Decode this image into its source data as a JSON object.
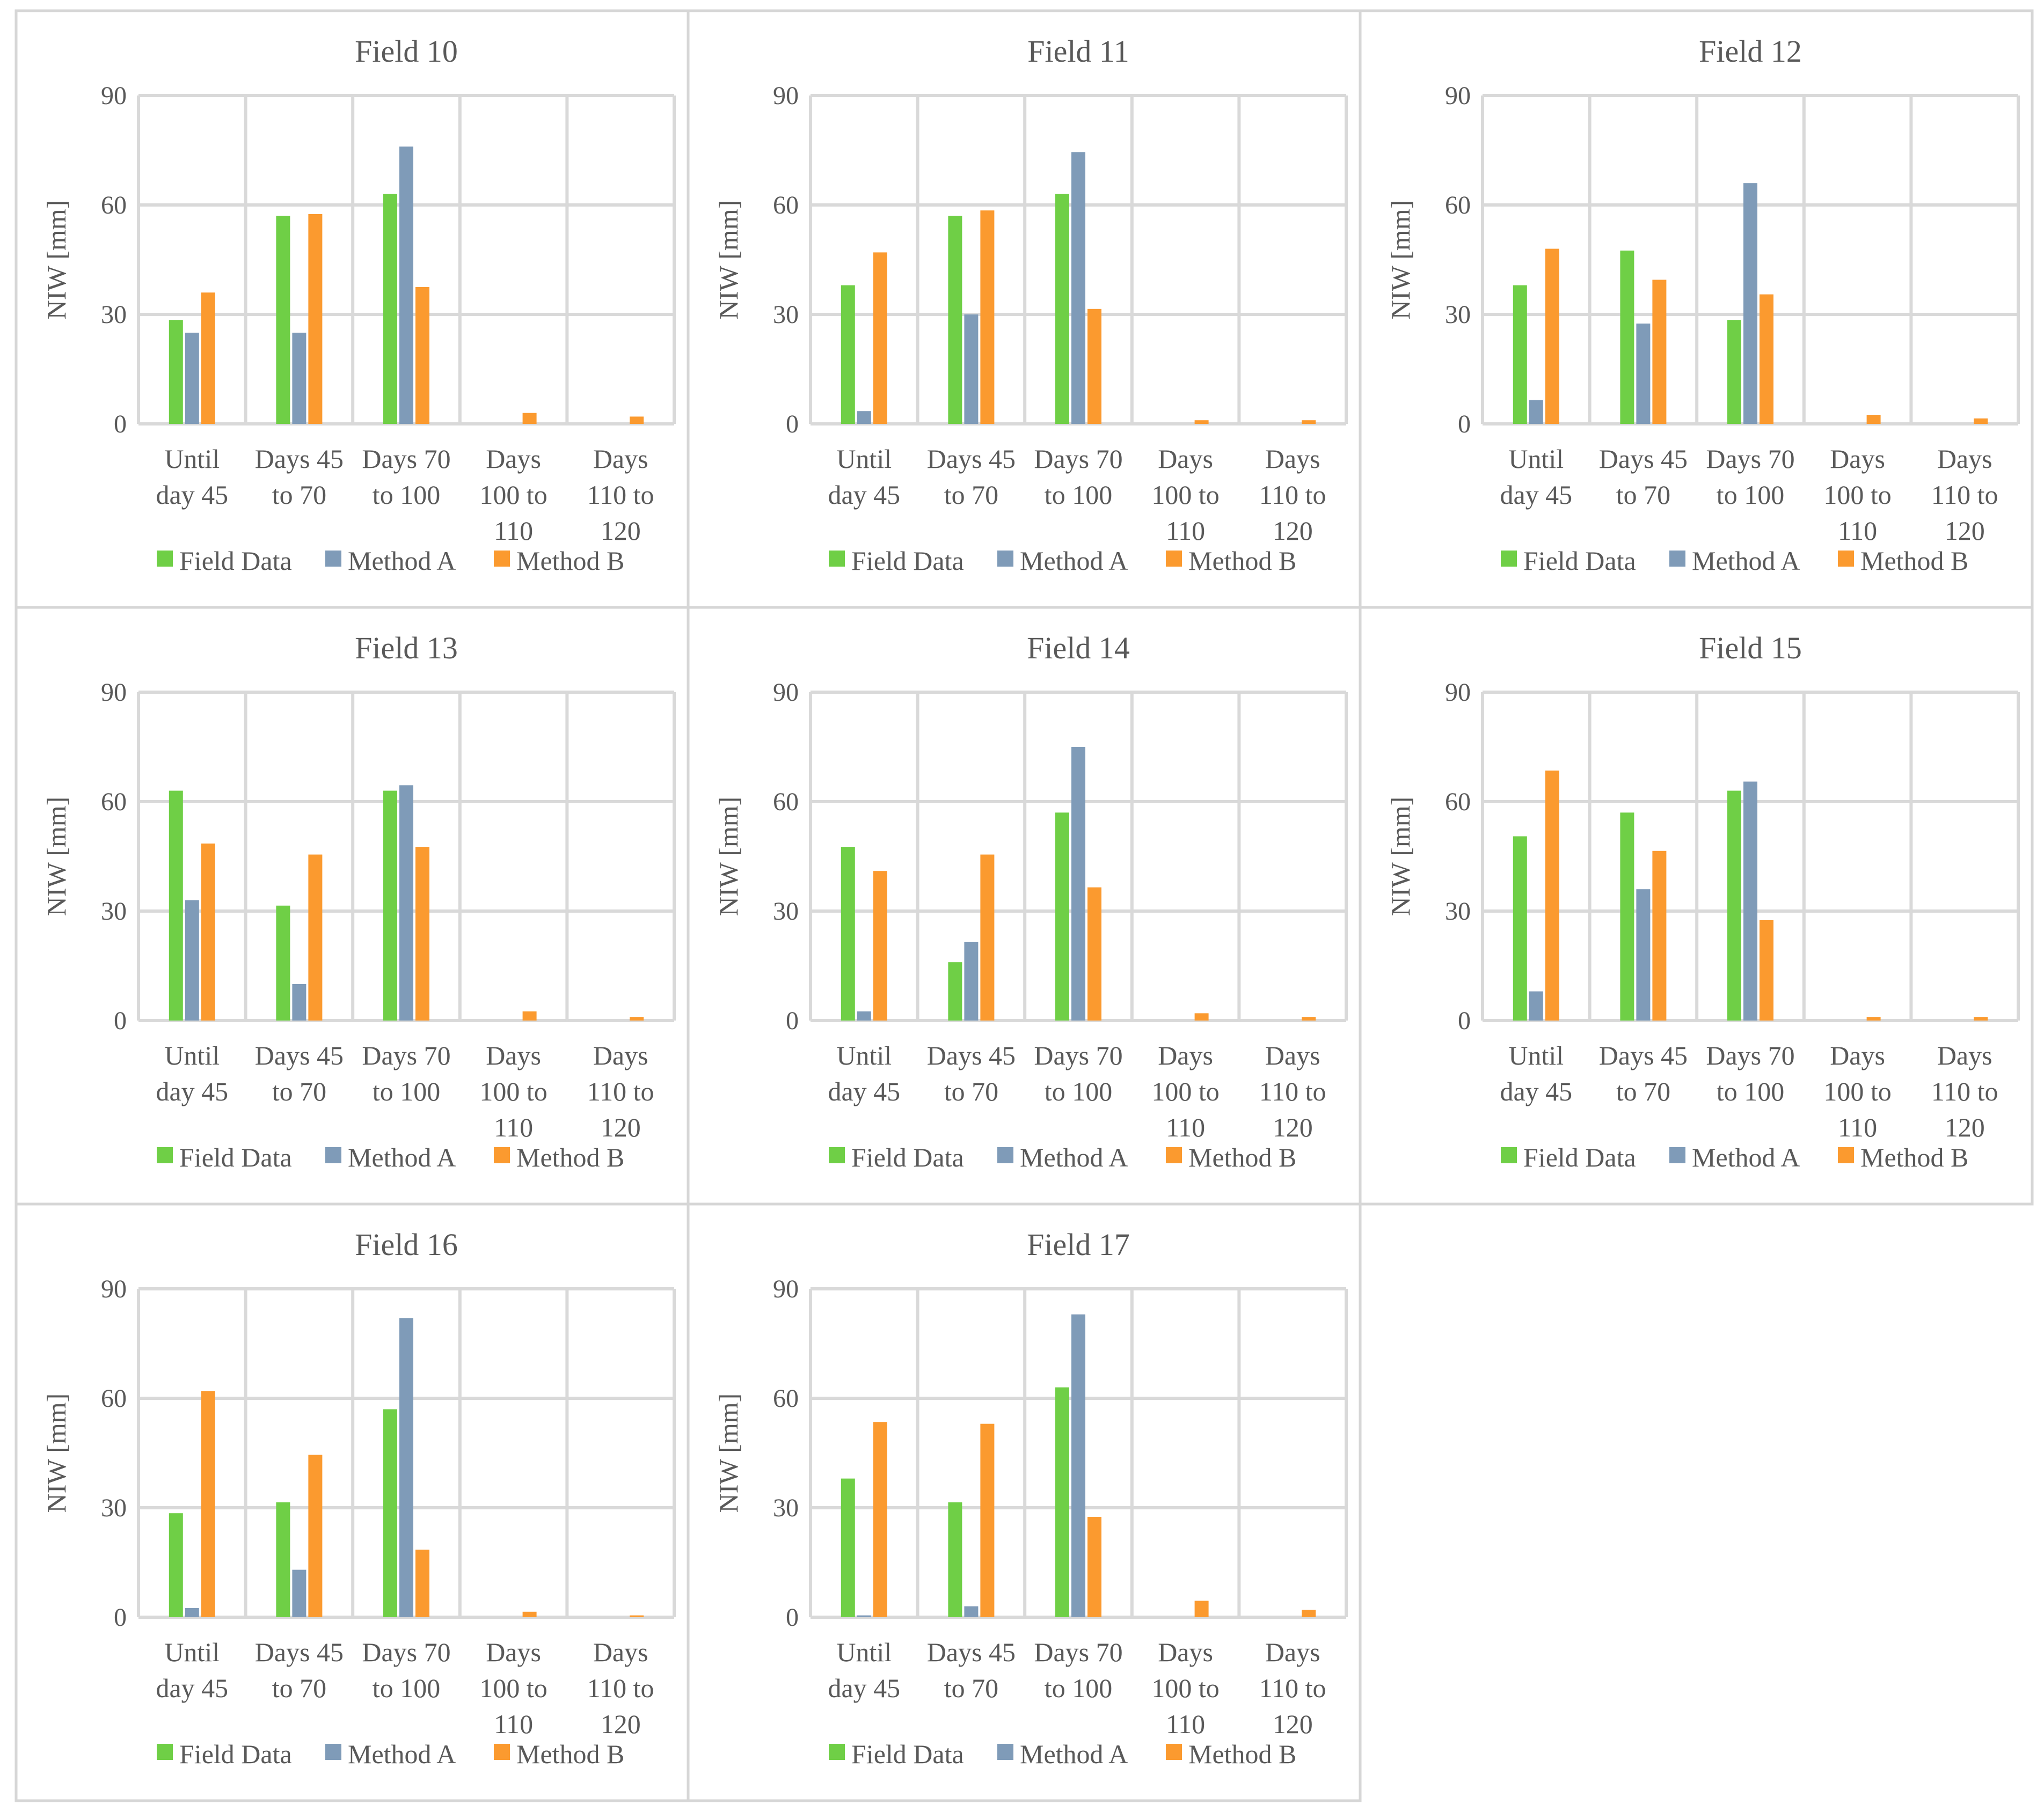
{
  "colors": {
    "field_data": "#6fcf46",
    "method_a": "#7f9bb8",
    "method_b": "#fb9a2f"
  },
  "chart_data": [
    {
      "type": "bar",
      "title": "Field 10",
      "ylabel": "NIW [mm]",
      "ylim": [
        0,
        90
      ],
      "yticks": [
        "0",
        "30",
        "60",
        "90"
      ],
      "categories": [
        [
          "Until",
          "day 45"
        ],
        [
          "Days 45",
          "to 70"
        ],
        [
          "Days 70",
          "to 100"
        ],
        [
          "Days",
          "100 to",
          "110"
        ],
        [
          "Days",
          "110 to",
          "120"
        ]
      ],
      "series": [
        {
          "name": "Field Data",
          "values": [
            28.5,
            57,
            63,
            0,
            0
          ]
        },
        {
          "name": "Method A",
          "values": [
            25,
            25,
            76,
            0,
            0
          ]
        },
        {
          "name": "Method B",
          "values": [
            36,
            57.5,
            37.5,
            3,
            2
          ]
        }
      ]
    },
    {
      "type": "bar",
      "title": "Field 11",
      "ylabel": "NIW [mm]",
      "ylim": [
        0,
        90
      ],
      "yticks": [
        "0",
        "30",
        "60",
        "90"
      ],
      "categories": [
        [
          "Until",
          "day 45"
        ],
        [
          "Days 45",
          "to 70"
        ],
        [
          "Days 70",
          "to 100"
        ],
        [
          "Days",
          "100 to",
          "110"
        ],
        [
          "Days",
          "110 to",
          "120"
        ]
      ],
      "series": [
        {
          "name": "Field Data",
          "values": [
            38,
            57,
            63,
            0,
            0
          ]
        },
        {
          "name": "Method A",
          "values": [
            3.5,
            30,
            74.5,
            0,
            0
          ]
        },
        {
          "name": "Method B",
          "values": [
            47,
            58.5,
            31.5,
            1,
            1
          ]
        }
      ]
    },
    {
      "type": "bar",
      "title": "Field 12",
      "ylabel": "NIW [mm]",
      "ylim": [
        0,
        90
      ],
      "yticks": [
        "0",
        "30",
        "60",
        "90"
      ],
      "categories": [
        [
          "Until",
          "day 45"
        ],
        [
          "Days 45",
          "to 70"
        ],
        [
          "Days 70",
          "to 100"
        ],
        [
          "Days",
          "100 to",
          "110"
        ],
        [
          "Days",
          "110 to",
          "120"
        ]
      ],
      "series": [
        {
          "name": "Field Data",
          "values": [
            38,
            47.5,
            28.5,
            0,
            0
          ]
        },
        {
          "name": "Method A",
          "values": [
            6.5,
            27.5,
            66,
            0,
            0
          ]
        },
        {
          "name": "Method B",
          "values": [
            48,
            39.5,
            35.5,
            2.5,
            1.5
          ]
        }
      ]
    },
    {
      "type": "bar",
      "title": "Field 13",
      "ylabel": "NIW [mm]",
      "ylim": [
        0,
        90
      ],
      "yticks": [
        "0",
        "30",
        "60",
        "90"
      ],
      "categories": [
        [
          "Until",
          "day 45"
        ],
        [
          "Days 45",
          "to 70"
        ],
        [
          "Days 70",
          "to 100"
        ],
        [
          "Days",
          "100 to",
          "110"
        ],
        [
          "Days",
          "110 to",
          "120"
        ]
      ],
      "series": [
        {
          "name": "Field Data",
          "values": [
            63,
            31.5,
            63,
            0,
            0
          ]
        },
        {
          "name": "Method A",
          "values": [
            33,
            10,
            64.5,
            0,
            0
          ]
        },
        {
          "name": "Method B",
          "values": [
            48.5,
            45.5,
            47.5,
            2.5,
            1
          ]
        }
      ]
    },
    {
      "type": "bar",
      "title": "Field 14",
      "ylabel": "NIW [mm]",
      "ylim": [
        0,
        90
      ],
      "yticks": [
        "0",
        "30",
        "60",
        "90"
      ],
      "categories": [
        [
          "Until",
          "day 45"
        ],
        [
          "Days 45",
          "to 70"
        ],
        [
          "Days 70",
          "to 100"
        ],
        [
          "Days",
          "100 to",
          "110"
        ],
        [
          "Days",
          "110 to",
          "120"
        ]
      ],
      "series": [
        {
          "name": "Field Data",
          "values": [
            47.5,
            16,
            57,
            0,
            0
          ]
        },
        {
          "name": "Method A",
          "values": [
            2.5,
            21.5,
            75,
            0,
            0
          ]
        },
        {
          "name": "Method B",
          "values": [
            41,
            45.5,
            36.5,
            2,
            1
          ]
        }
      ]
    },
    {
      "type": "bar",
      "title": "Field 15",
      "ylabel": "NIW [mm]",
      "ylim": [
        0,
        90
      ],
      "yticks": [
        "0",
        "30",
        "60",
        "90"
      ],
      "categories": [
        [
          "Until",
          "day 45"
        ],
        [
          "Days 45",
          "to 70"
        ],
        [
          "Days 70",
          "to 100"
        ],
        [
          "Days",
          "100 to",
          "110"
        ],
        [
          "Days",
          "110 to",
          "120"
        ]
      ],
      "series": [
        {
          "name": "Field Data",
          "values": [
            50.5,
            57,
            63,
            0,
            0
          ]
        },
        {
          "name": "Method A",
          "values": [
            8,
            36,
            65.5,
            0,
            0
          ]
        },
        {
          "name": "Method B",
          "values": [
            68.5,
            46.5,
            27.5,
            1,
            1
          ]
        }
      ]
    },
    {
      "type": "bar",
      "title": "Field 16",
      "ylabel": "NIW [mm]",
      "ylim": [
        0,
        90
      ],
      "yticks": [
        "0",
        "30",
        "60",
        "90"
      ],
      "categories": [
        [
          "Until",
          "day 45"
        ],
        [
          "Days 45",
          "to 70"
        ],
        [
          "Days 70",
          "to 100"
        ],
        [
          "Days",
          "100 to",
          "110"
        ],
        [
          "Days",
          "110 to",
          "120"
        ]
      ],
      "series": [
        {
          "name": "Field Data",
          "values": [
            28.5,
            31.5,
            57,
            0,
            0
          ]
        },
        {
          "name": "Method A",
          "values": [
            2.5,
            13,
            82,
            0,
            0
          ]
        },
        {
          "name": "Method B",
          "values": [
            62,
            44.5,
            18.5,
            1.5,
            0.5
          ]
        }
      ]
    },
    {
      "type": "bar",
      "title": "Field 17",
      "ylabel": "NIW [mm]",
      "ylim": [
        0,
        90
      ],
      "yticks": [
        "0",
        "30",
        "60",
        "90"
      ],
      "categories": [
        [
          "Until",
          "day 45"
        ],
        [
          "Days 45",
          "to 70"
        ],
        [
          "Days 70",
          "to 100"
        ],
        [
          "Days",
          "100 to",
          "110"
        ],
        [
          "Days",
          "110 to",
          "120"
        ]
      ],
      "series": [
        {
          "name": "Field Data",
          "values": [
            38,
            31.5,
            63,
            0,
            0
          ]
        },
        {
          "name": "Method A",
          "values": [
            0.5,
            3,
            83,
            0,
            0
          ]
        },
        {
          "name": "Method B",
          "values": [
            53.5,
            53,
            27.5,
            4.5,
            2
          ]
        }
      ]
    }
  ]
}
